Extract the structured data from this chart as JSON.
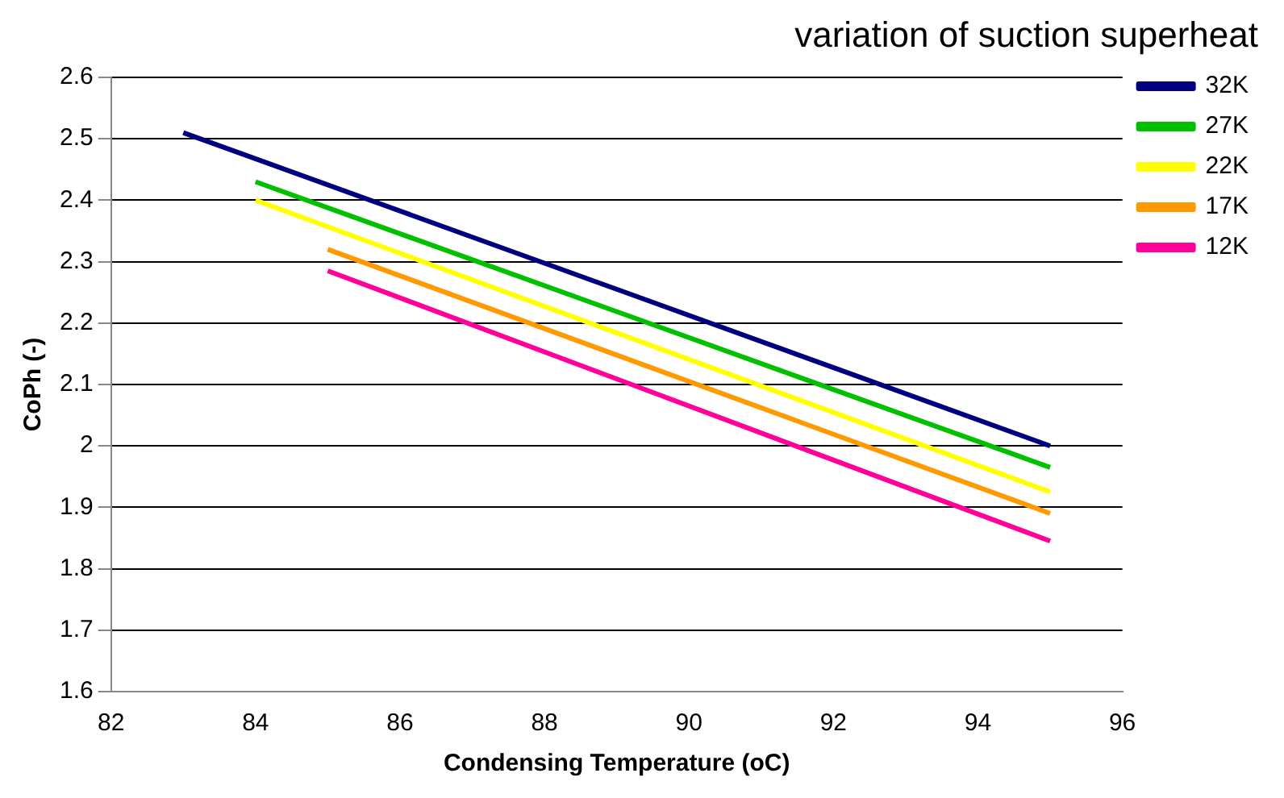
{
  "chart_data": {
    "type": "line",
    "title": "variation of suction superheat",
    "xlabel": "Condensing Temperature (oC)",
    "ylabel": "CoPh (-)",
    "xlim": [
      82,
      96
    ],
    "xticks": [
      82,
      84,
      86,
      88,
      90,
      92,
      94,
      96
    ],
    "ylim": [
      1.6,
      2.6
    ],
    "yticks": [
      1.6,
      1.7,
      1.8,
      1.9,
      2,
      2.1,
      2.2,
      2.3,
      2.4,
      2.5,
      2.6
    ],
    "grid": "y",
    "legend": "top right",
    "marker": "none",
    "line_style": "solid",
    "series": [
      {
        "name": "32K",
        "color": "#000080",
        "x": [
          83,
          95
        ],
        "values": [
          2.51,
          2.0
        ]
      },
      {
        "name": "27K",
        "color": "#00c000",
        "x": [
          84,
          95
        ],
        "values": [
          2.43,
          1.965
        ]
      },
      {
        "name": "22K",
        "color": "#ffff00",
        "x": [
          84,
          95
        ],
        "values": [
          2.4,
          1.925
        ]
      },
      {
        "name": "17K",
        "color": "#ff9900",
        "x": [
          85,
          95
        ],
        "values": [
          2.32,
          1.89
        ]
      },
      {
        "name": "12K",
        "color": "#ff0099",
        "x": [
          85,
          95
        ],
        "values": [
          2.285,
          1.845
        ]
      }
    ]
  }
}
